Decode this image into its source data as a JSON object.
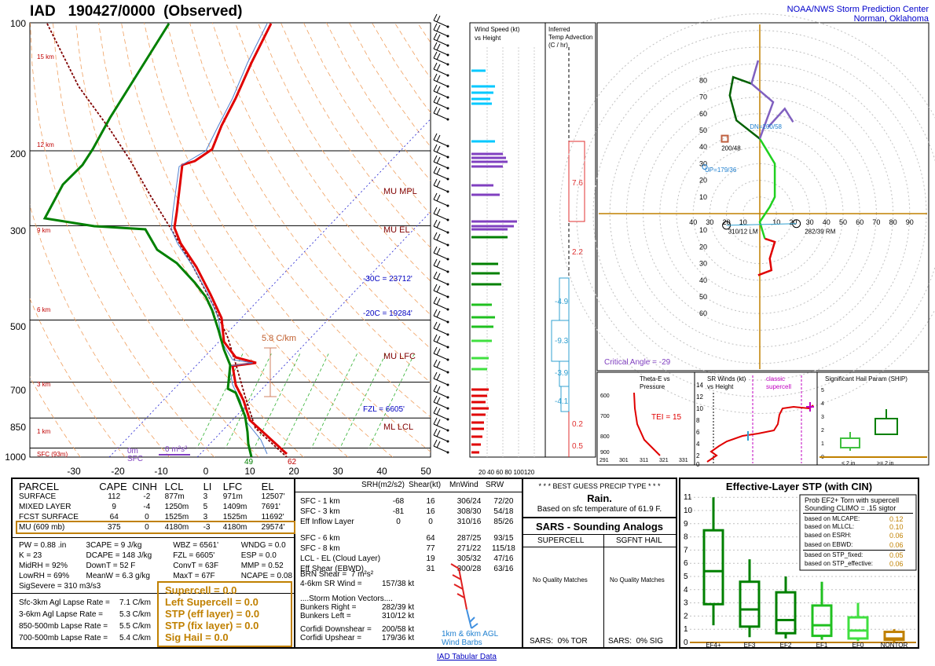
{
  "header": {
    "station": "IAD",
    "time": "190427/0000",
    "kind": "(Observed)",
    "org_line1": "NOAA/NWS Storm Prediction Center",
    "org_line2": "Norman, Oklahoma"
  },
  "skewt": {
    "pressure_labels": [
      "100",
      "200",
      "300",
      "500",
      "700",
      "850",
      "1000"
    ],
    "temp_labels": [
      "-30",
      "-20",
      "-10",
      "0",
      "10",
      "20",
      "30",
      "40",
      "50"
    ],
    "height_labels": [
      "15 km",
      "12 km",
      "9 km",
      "6 km",
      "3 km",
      "1 km",
      "SFC (93m)"
    ],
    "level_labels": [
      "MU MPL",
      "MU EL",
      "MU LFC",
      "ML LCL"
    ],
    "isotherm_labels": [
      "-30C = 23712'",
      "-20C = 19284'",
      "FZL = 6605'"
    ],
    "lapse_label": "5.8 C/km",
    "sfc_label_a": "0m",
    "sfc_label_b": "SFC",
    "sfc_dcape": "0 m²s²",
    "sfc_temp": "62",
    "sfc_dew": "49"
  },
  "chart_data": [
    {
      "type": "line",
      "title": "",
      "series": [
        {
          "name": "",
          "x": [
            15.5,
            14.5,
            12,
            7,
            -10,
            -7,
            -25,
            -29,
            -40
          ],
          "y": [
            1000,
            925,
            850,
            700,
            500,
            400,
            300,
            250,
            200
          ]
        },
        {
          "name": "",
          "x": [
            10,
            9,
            5,
            2,
            -12,
            -15,
            -40,
            -45,
            -50
          ],
          "y": [
            1000,
            925,
            850,
            700,
            500,
            400,
            300,
            250,
            200
          ]
        }
      ],
      "xlim": [
        -30,
        50
      ],
      "ylim": [
        1000,
        100
      ]
    }
  ],
  "windspeed_panel": {
    "title_line1": "Wind Speed (kt)",
    "title_line2": "vs Height",
    "x_ticks": "20 40 60 80 100120"
  },
  "tadv_panel": {
    "title_line1": "Inferred",
    "title_line2": "Temp Advection",
    "title_line3": "(C / hr)",
    "values": [
      "7.6",
      "2.2",
      "-4.9",
      "-9.3",
      "-3.9",
      "-4.1",
      "0.2",
      "0.5"
    ]
  },
  "hodograph": {
    "axis_labels": [
      "40",
      "30",
      "20",
      "10",
      "10",
      "20",
      "30",
      "40",
      "50",
      "60",
      "70",
      "80",
      "90"
    ],
    "ring_labels": [
      "80",
      "70",
      "60",
      "50",
      "40",
      "30",
      "20",
      "10",
      "10",
      "20",
      "30",
      "40",
      "50",
      "60"
    ],
    "dn_label": "DN=200/58",
    "up_label": "UP=179/36",
    "lm_label": "310/12 LM",
    "rm_label": "282/39 RM",
    "mean_label": "200/48",
    "crit_angle": "Critical Angle = -29"
  },
  "theta_panel": {
    "title_line1": "Theta-E vs",
    "title_line2": "Pressure",
    "tei": "TEI = 15",
    "x_ticks": [
      "291",
      "301",
      "311",
      "321",
      "331"
    ],
    "y_ticks": [
      "600",
      "700",
      "800",
      "900"
    ]
  },
  "srwind_panel": {
    "title_line1": "SR Winds (kt)",
    "title_line2": "vs Height",
    "classic_line1": "classic",
    "classic_line2": "supercell",
    "y_ticks": [
      "14",
      "12",
      "10",
      "8",
      "6",
      "4",
      "2",
      "0"
    ]
  },
  "ship_panel": {
    "title": "Significant Hail Param (SHIP)",
    "lbl_lt": "< 2 in",
    "lbl_gt": ">= 2 in",
    "y_ticks": [
      "5",
      "4",
      "3",
      "2",
      "1",
      "0"
    ]
  },
  "parcel_table": {
    "headers": [
      "PARCEL",
      "CAPE",
      "CINH",
      "LCL",
      "LI",
      "LFC",
      "EL"
    ],
    "rows": [
      [
        "SURFACE",
        "112",
        "-2",
        "877m",
        "3",
        "971m",
        "12507'"
      ],
      [
        "MIXED LAYER",
        "9",
        "-4",
        "1250m",
        "5",
        "1409m",
        "7691'"
      ],
      [
        "FCST SURFACE",
        "64",
        "0",
        "1525m",
        "3",
        "1525m",
        "11692'"
      ],
      [
        "MU   (609 mb)",
        "375",
        "0",
        "4180m",
        "-3",
        "4180m",
        "29574'"
      ]
    ]
  },
  "params": [
    [
      "PW = 0.88 .in",
      "3CAPE = 9 J/kg",
      "WBZ = 6561'",
      "WNDG = 0.0"
    ],
    [
      "K = 23",
      "DCAPE = 148 J/kg",
      "FZL = 6605'",
      "ESP = 0.0"
    ],
    [
      "MidRH = 92%",
      "DownT = 52 F",
      "ConvT = 63F",
      "MMP = 0.52"
    ],
    [
      "LowRH = 69%",
      "MeanW = 6.3 g/kg",
      "MaxT = 67F",
      "NCAPE = 0.08"
    ]
  ],
  "sigsevere": "SigSevere = 310 m3/s3",
  "lapse": [
    [
      "Sfc-3km Agl Lapse Rate =",
      "7.1 C/km"
    ],
    [
      "3-6km Agl Lapse Rate =",
      "5.3 C/km"
    ],
    [
      "850-500mb Lapse Rate =",
      "5.5 C/km"
    ],
    [
      "700-500mb Lapse Rate =",
      "5.4 C/km"
    ]
  ],
  "composites": [
    "Supercell = 0.0",
    "Left Supercell = 0.0",
    "STP (eff layer) = 0.0",
    "STP (fix layer) = 0.0",
    "Sig Hail = 0.0"
  ],
  "kinematics": {
    "headers": [
      "SRH(m2/s2)",
      "Shear(kt)",
      "MnWind",
      "SRW"
    ],
    "rows": [
      [
        "SFC - 1 km",
        "-68",
        "16",
        "306/24",
        "72/20"
      ],
      [
        "SFC - 3 km",
        "-81",
        "16",
        "308/30",
        "54/18"
      ],
      [
        "Eff Inflow Layer",
        "0",
        "0",
        "310/16",
        "85/26"
      ],
      [
        "",
        "",
        "",
        "",
        ""
      ],
      [
        "SFC - 6 km",
        "",
        "64",
        "287/25",
        "93/15"
      ],
      [
        "SFC - 8 km",
        "",
        "77",
        "271/22",
        "115/18"
      ],
      [
        "LCL - EL (Cloud Layer)",
        "",
        "19",
        "305/32",
        "47/16"
      ],
      [
        "Eff Shear (EBWD)",
        "",
        "31",
        "300/28",
        "63/16"
      ]
    ],
    "brn": "BRN Shear =  7 m²s²",
    "srwind46": "4-6km SR Wind =",
    "srwind46_val": "157/38 kt",
    "storm_motion": "....Storm Motion Vectors....",
    "bunkers_r": "Bunkers Right =",
    "bunkers_r_val": "282/39 kt",
    "bunkers_l": "Bunkers Left =",
    "bunkers_l_val": "310/12 kt",
    "corfidi_down": "Corfidi Downshear =",
    "corfidi_down_val": "200/58 kt",
    "corfidi_up": "Corfidi Upshear =",
    "corfidi_up_val": "179/36 kt",
    "barbs_line1": "1km & 6km AGL",
    "barbs_line2": "Wind Barbs"
  },
  "precip": {
    "title": "* * * BEST GUESS PRECIP TYPE * * *",
    "value": "Rain.",
    "note": "Based on sfc temperature of 61.9 F."
  },
  "sars": {
    "title": "SARS - Sounding Analogs",
    "col1": "SUPERCELL",
    "col2": "SGFNT HAIL",
    "nomatch1": "No Quality Matches",
    "nomatch2": "No Quality Matches",
    "foot1": "SARS:  0% TOR",
    "foot2": "SARS:  0% SIG"
  },
  "stp": {
    "title": "Effective-Layer STP (with CIN)",
    "prob_line1": "Prob EF2+ Torn with supercell",
    "prob_line2": "Sounding CLIMO = .15 sigtor",
    "based": [
      [
        "based on MLCAPE:",
        "0.12"
      ],
      [
        "based on MLLCL:",
        "0.10"
      ],
      [
        "based on ESRH:",
        "0.06"
      ],
      [
        "based on EBWD:",
        "0.06"
      ],
      [
        "based on STP_fixed:",
        "0.05"
      ],
      [
        "based on STP_effective:",
        "0.06"
      ]
    ],
    "y_ticks": [
      "11",
      "10",
      "9",
      "8",
      "7",
      "6",
      "5",
      "4",
      "3",
      "2",
      "1",
      "0"
    ],
    "categories": [
      "EF4+",
      "EF3",
      "EF2",
      "EF1",
      "EF0",
      "NONTOR"
    ]
  },
  "footer_link": "IAD Tabular Data",
  "colors": {
    "temp": "#e00000",
    "dew": "#008000",
    "purple": "#8040c0",
    "cyan": "#00c8ff",
    "gold": "#c08000"
  }
}
